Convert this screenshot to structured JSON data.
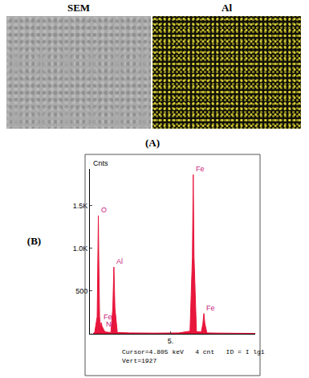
{
  "panels": {
    "image_labels": [
      "SEM",
      "Al"
    ],
    "panel_labels": [
      "(A)",
      "(B)"
    ]
  },
  "chart_data": {
    "type": "area",
    "ylabel": "Cnts",
    "x": [
      0.2,
      0.3,
      0.45,
      0.5,
      0.525,
      0.55,
      0.6,
      0.65,
      0.7,
      0.75,
      0.8,
      0.85,
      0.9,
      1.0,
      1.3,
      1.42,
      1.487,
      1.55,
      1.7,
      2.5,
      4,
      5.5,
      6.2,
      6.35,
      6.4,
      6.45,
      6.6,
      6.9,
      7.0,
      7.06,
      7.12,
      7.25,
      8.0,
      9,
      10.24
    ],
    "values": [
      0,
      20,
      200,
      900,
      1380,
      900,
      200,
      80,
      130,
      90,
      60,
      50,
      30,
      20,
      15,
      300,
      780,
      300,
      15,
      10,
      8,
      10,
      30,
      900,
      1860,
      900,
      25,
      20,
      120,
      237,
      120,
      10,
      8,
      6,
      4
    ],
    "color": "#e8163c",
    "xlim": [
      0,
      10.24
    ],
    "ylim": [
      0,
      1927
    ],
    "xticks": [
      {
        "value": 5,
        "label": "5."
      }
    ],
    "yticks": [
      500,
      {
        "value": 1000,
        "label": "1.0K"
      },
      {
        "value": 1500,
        "label": "1.5K"
      }
    ],
    "grid": false,
    "annotations": [
      {
        "text": "O",
        "x": 0.525,
        "y": 1380
      },
      {
        "text": "Fe",
        "x": 0.705,
        "y": 130
      },
      {
        "text": "Ni",
        "x": 0.85,
        "y": 50
      },
      {
        "text": "Al",
        "x": 1.487,
        "y": 780
      },
      {
        "text": "Fe",
        "x": 6.4,
        "y": 1860
      },
      {
        "text": "Fe",
        "x": 7.06,
        "y": 237
      }
    ],
    "annotation_color": "#c8187a",
    "footer": [
      "Cursor=4.805 keV   4 cnt   ID = I lg1",
      "Vert=1927"
    ]
  }
}
